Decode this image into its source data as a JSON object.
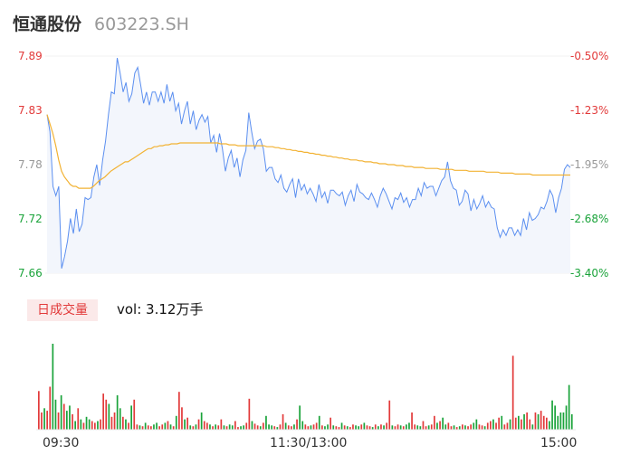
{
  "header": {
    "name": "恒通股份",
    "code": "603223.SH"
  },
  "volume": {
    "tag": "日成交量",
    "label": "vol: 3.12万手"
  },
  "colors": {
    "price_line": "#5b8ff0",
    "avg_line": "#f2b233",
    "area_fill": "#f3f6fc",
    "up": "#e23a3a",
    "down": "#1aa33a",
    "tick_text": "#333333"
  },
  "chart_data": {
    "type": "line",
    "title": "",
    "y_ticks_left": [
      "7.89",
      "7.83",
      "7.78",
      "7.72",
      "7.66"
    ],
    "y_ticks_right": [
      "-0.50%",
      "-1.23%",
      "-1.95%",
      "-2.68%",
      "-3.40%"
    ],
    "ylim": [
      7.66,
      7.89
    ],
    "x_ticks": [
      "09:30",
      "11:30/13:00",
      "15:00"
    ],
    "series": [
      {
        "values": [
          7.828,
          7.81,
          7.752,
          7.742,
          7.752,
          7.665,
          7.678,
          7.694,
          7.718,
          7.702,
          7.728,
          7.704,
          7.712,
          7.74,
          7.738,
          7.74,
          7.762,
          7.775,
          7.753,
          7.78,
          7.8,
          7.828,
          7.852,
          7.85,
          7.888,
          7.872,
          7.852,
          7.862,
          7.842,
          7.85,
          7.872,
          7.878,
          7.86,
          7.84,
          7.852,
          7.838,
          7.852,
          7.852,
          7.842,
          7.852,
          7.84,
          7.86,
          7.842,
          7.852,
          7.832,
          7.84,
          7.818,
          7.832,
          7.842,
          7.818,
          7.832,
          7.812,
          7.822,
          7.828,
          7.82,
          7.826,
          7.798,
          7.806,
          7.788,
          7.808,
          7.792,
          7.768,
          7.782,
          7.79,
          7.772,
          7.782,
          7.762,
          7.78,
          7.79,
          7.83,
          7.81,
          7.792,
          7.8,
          7.802,
          7.792,
          7.768,
          7.772,
          7.772,
          7.76,
          7.756,
          7.764,
          7.75,
          7.746,
          7.754,
          7.76,
          7.74,
          7.76,
          7.748,
          7.754,
          7.744,
          7.75,
          7.744,
          7.736,
          7.754,
          7.74,
          7.746,
          7.734,
          7.748,
          7.748,
          7.744,
          7.742,
          7.746,
          7.732,
          7.742,
          7.748,
          7.736,
          7.754,
          7.746,
          7.744,
          7.74,
          7.738,
          7.745,
          7.738,
          7.73,
          7.742,
          7.75,
          7.744,
          7.736,
          7.728,
          7.74,
          7.738,
          7.745,
          7.735,
          7.74,
          7.73,
          7.738,
          7.738,
          7.75,
          7.742,
          7.756,
          7.75,
          7.752,
          7.752,
          7.742,
          7.75,
          7.758,
          7.762,
          7.778,
          7.758,
          7.75,
          7.748,
          7.732,
          7.736,
          7.748,
          7.744,
          7.726,
          7.738,
          7.728,
          7.734,
          7.742,
          7.73,
          7.736,
          7.73,
          7.728,
          7.708,
          7.698,
          7.706,
          7.7,
          7.708,
          7.708,
          7.7,
          7.706,
          7.7,
          7.718,
          7.706,
          7.724,
          7.716,
          7.718,
          7.722,
          7.73,
          7.728,
          7.736,
          7.748,
          7.742,
          7.724,
          7.74,
          7.75,
          7.77,
          7.775,
          7.772
        ]
      },
      {
        "values": [
          7.828,
          7.818,
          7.808,
          7.795,
          7.78,
          7.768,
          7.762,
          7.758,
          7.754,
          7.752,
          7.752,
          7.75,
          7.75,
          7.75,
          7.75,
          7.75,
          7.752,
          7.755,
          7.758,
          7.76,
          7.762,
          7.765,
          7.768,
          7.77,
          7.772,
          7.774,
          7.776,
          7.778,
          7.778,
          7.78,
          7.782,
          7.784,
          7.786,
          7.788,
          7.79,
          7.792,
          7.792,
          7.794,
          7.794,
          7.795,
          7.795,
          7.796,
          7.796,
          7.797,
          7.797,
          7.797,
          7.798,
          7.798,
          7.798,
          7.798,
          7.798,
          7.798,
          7.798,
          7.798,
          7.798,
          7.798,
          7.798,
          7.798,
          7.798,
          7.798,
          7.797,
          7.797,
          7.797,
          7.796,
          7.796,
          7.796,
          7.795,
          7.795,
          7.795,
          7.795,
          7.795,
          7.795,
          7.795,
          7.795,
          7.795,
          7.795,
          7.794,
          7.794,
          7.794,
          7.793,
          7.793,
          7.792,
          7.792,
          7.791,
          7.791,
          7.79,
          7.79,
          7.789,
          7.789,
          7.788,
          7.788,
          7.787,
          7.787,
          7.786,
          7.786,
          7.785,
          7.785,
          7.784,
          7.784,
          7.783,
          7.783,
          7.782,
          7.782,
          7.781,
          7.781,
          7.78,
          7.78,
          7.78,
          7.779,
          7.779,
          7.778,
          7.778,
          7.778,
          7.777,
          7.777,
          7.776,
          7.776,
          7.776,
          7.775,
          7.775,
          7.775,
          7.774,
          7.774,
          7.774,
          7.773,
          7.773,
          7.773,
          7.772,
          7.772,
          7.772,
          7.772,
          7.771,
          7.771,
          7.771,
          7.771,
          7.771,
          7.77,
          7.77,
          7.77,
          7.77,
          7.77,
          7.769,
          7.769,
          7.769,
          7.769,
          7.769,
          7.768,
          7.768,
          7.768,
          7.768,
          7.768,
          7.768,
          7.767,
          7.767,
          7.767,
          7.767,
          7.767,
          7.766,
          7.766,
          7.766,
          7.766,
          7.766,
          7.765,
          7.765,
          7.765,
          7.765,
          7.765,
          7.765,
          7.764,
          7.764,
          7.764,
          7.764,
          7.764,
          7.764,
          7.764,
          7.764,
          7.764,
          7.764,
          7.764,
          7.764,
          7.764,
          7.764
        ]
      }
    ],
    "volume_bars": {
      "values": [
        0.45,
        0.2,
        0.25,
        0.22,
        0.5,
        1,
        0.35,
        0.2,
        0.4,
        0.3,
        0.22,
        0.28,
        0.18,
        0.1,
        0.25,
        0.12,
        0.08,
        0.15,
        0.12,
        0.1,
        0.08,
        0.1,
        0.12,
        0.42,
        0.35,
        0.3,
        0.15,
        0.2,
        0.4,
        0.25,
        0.15,
        0.12,
        0.08,
        0.28,
        0.35,
        0.06,
        0.05,
        0.04,
        0.08,
        0.05,
        0.04,
        0.06,
        0.08,
        0.04,
        0.06,
        0.08,
        0.1,
        0.06,
        0.04,
        0.16,
        0.44,
        0.26,
        0.12,
        0.14,
        0.05,
        0.04,
        0.06,
        0.12,
        0.2,
        0.1,
        0.08,
        0.06,
        0.04,
        0.06,
        0.05,
        0.12,
        0.05,
        0.04,
        0.06,
        0.05,
        0.1,
        0.03,
        0.04,
        0.05,
        0.08,
        0.36,
        0.1,
        0.07,
        0.05,
        0.04,
        0.08,
        0.16,
        0.06,
        0.05,
        0.04,
        0.03,
        0.06,
        0.18,
        0.08,
        0.05,
        0.04,
        0.06,
        0.12,
        0.28,
        0.1,
        0.06,
        0.04,
        0.05,
        0.06,
        0.08,
        0.16,
        0.05,
        0.04,
        0.06,
        0.14,
        0.05,
        0.04,
        0.03,
        0.08,
        0.05,
        0.04,
        0.03,
        0.06,
        0.05,
        0.04,
        0.06,
        0.08,
        0.05,
        0.04,
        0.03,
        0.06,
        0.04,
        0.06,
        0.05,
        0.08,
        0.34,
        0.05,
        0.04,
        0.06,
        0.05,
        0.04,
        0.06,
        0.08,
        0.2,
        0.06,
        0.05,
        0.04,
        0.1,
        0.04,
        0.05,
        0.06,
        0.16,
        0.08,
        0.1,
        0.14,
        0.06,
        0.08,
        0.04,
        0.05,
        0.03,
        0.04,
        0.06,
        0.05,
        0.04,
        0.06,
        0.08,
        0.12,
        0.06,
        0.05,
        0.04,
        0.08,
        0.1,
        0.12,
        0.08,
        0.14,
        0.16,
        0.06,
        0.08,
        0.12,
        0.86,
        0.14,
        0.16,
        0.12,
        0.18,
        0.2,
        0.12,
        0.06,
        0.2,
        0.18,
        0.22,
        0.16,
        0.14,
        0.1,
        0.34,
        0.28,
        0.16,
        0.2,
        0.2,
        0.28,
        0.52,
        0.18
      ],
      "directions": [
        "u",
        "u",
        "d",
        "u",
        "u",
        "d",
        "d",
        "u",
        "d",
        "u",
        "d",
        "d",
        "u",
        "d",
        "u",
        "d",
        "u",
        "d",
        "d",
        "u",
        "u",
        "d",
        "u",
        "u",
        "u",
        "d",
        "u",
        "u",
        "d",
        "d",
        "u",
        "d",
        "u",
        "d",
        "u",
        "u",
        "d",
        "u",
        "d",
        "u",
        "u",
        "d",
        "d",
        "u",
        "u",
        "d",
        "u",
        "d",
        "u",
        "d",
        "u",
        "u",
        "d",
        "u",
        "d",
        "u",
        "d",
        "u",
        "d",
        "u",
        "u",
        "d",
        "u",
        "d",
        "u",
        "u",
        "d",
        "u",
        "d",
        "d",
        "u",
        "u",
        "d",
        "d",
        "u",
        "u",
        "d",
        "u",
        "u",
        "d",
        "u",
        "d",
        "d",
        "d",
        "u",
        "d",
        "u",
        "u",
        "d",
        "u",
        "u",
        "d",
        "u",
        "d",
        "d",
        "u",
        "u",
        "d",
        "u",
        "u",
        "d",
        "u",
        "d",
        "d",
        "u",
        "d",
        "u",
        "u",
        "d",
        "u",
        "d",
        "u",
        "u",
        "d",
        "d",
        "u",
        "d",
        "u",
        "u",
        "d",
        "u",
        "d",
        "u",
        "d",
        "u",
        "u",
        "d",
        "u",
        "u",
        "d",
        "u",
        "d",
        "d",
        "u",
        "u",
        "d",
        "d",
        "u",
        "u",
        "d",
        "u",
        "u",
        "d",
        "u",
        "d",
        "d",
        "u",
        "u",
        "d",
        "u",
        "d",
        "u",
        "d",
        "u",
        "u",
        "d",
        "d",
        "u",
        "u",
        "d",
        "u",
        "u",
        "d",
        "u",
        "u",
        "d",
        "u",
        "u",
        "d",
        "u",
        "u",
        "d",
        "u",
        "d",
        "u",
        "u",
        "d",
        "u",
        "d",
        "u",
        "u",
        "u",
        "d"
      ]
    }
  }
}
